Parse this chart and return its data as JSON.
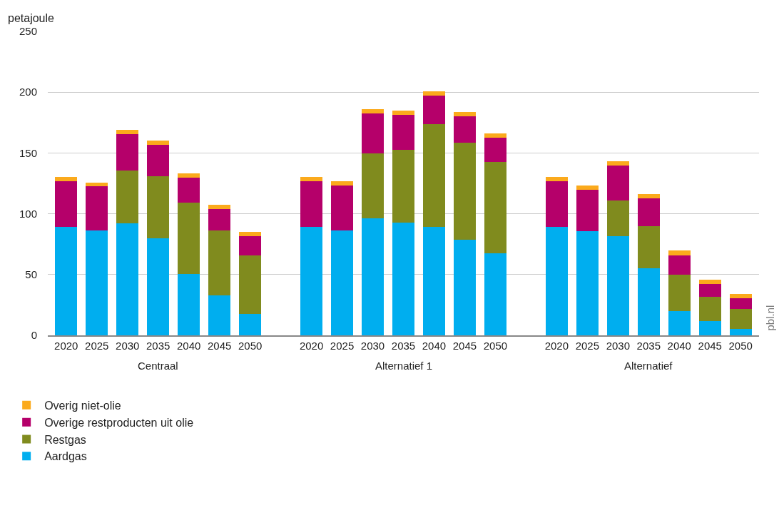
{
  "chart_data": {
    "type": "bar",
    "stacked": true,
    "ylabel": "petajoule",
    "categories": [
      "2020",
      "2025",
      "2030",
      "2035",
      "2040",
      "2045",
      "2050",
      null,
      "2020",
      "2025",
      "2030",
      "2035",
      "2040",
      "2045",
      "2050",
      null,
      "2020",
      "2025",
      "2030",
      "2035",
      "2040",
      "2045",
      "2050"
    ],
    "series": [
      {
        "name": "Aardgas",
        "color": "#00aeef",
        "values": [
          89,
          86,
          92,
          80,
          50.5,
          33,
          17.5,
          null,
          89,
          86.5,
          96,
          92.5,
          89,
          78.5,
          67.5,
          null,
          89,
          85.5,
          81.5,
          55,
          20,
          11.5,
          5.5
        ]
      },
      {
        "name": "Restgas",
        "color": "#808b1e",
        "values": [
          0,
          0,
          43.5,
          51,
          58.5,
          53,
          48,
          null,
          0,
          0,
          53.5,
          60,
          85,
          80,
          75,
          null,
          0,
          0,
          29.5,
          34.5,
          30,
          20,
          16
        ]
      },
      {
        "name": "Overige restproducten uit olie",
        "color": "#b5006a",
        "values": [
          38,
          36.5,
          30,
          25.5,
          20.5,
          18,
          16,
          null,
          38,
          37,
          33,
          29,
          23,
          21.5,
          20,
          null,
          38,
          34.5,
          28.5,
          23,
          16,
          11,
          9
        ]
      },
      {
        "name": "Overig niet-olie",
        "color": "#fbaa1c",
        "values": [
          3,
          3,
          3.7,
          3.5,
          3.5,
          3.5,
          3.5,
          null,
          3,
          3,
          3.5,
          3.5,
          3.5,
          3.5,
          3.5,
          null,
          3,
          3,
          3.5,
          3.5,
          4,
          3.5,
          3.5
        ]
      }
    ],
    "ylim": [
      0,
      250
    ],
    "yticks": [
      0,
      50,
      100,
      150,
      200,
      250
    ],
    "grid": "y",
    "legend": "bottom left",
    "annotations": [
      "Centraal",
      "Alternatief 1",
      "Alternatief",
      "pbl.nl"
    ]
  }
}
